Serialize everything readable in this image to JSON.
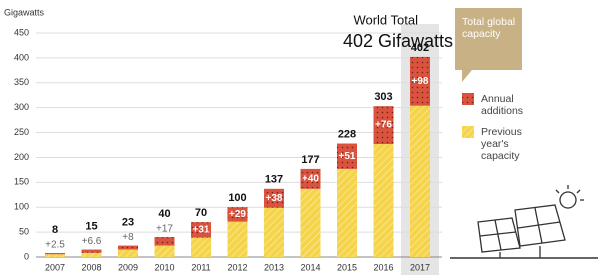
{
  "chart_data": {
    "type": "stacked_bar",
    "y_axis_label": "Gigawatts",
    "categories": [
      "2007",
      "2008",
      "2009",
      "2010",
      "2011",
      "2012",
      "2013",
      "2014",
      "2015",
      "2016",
      "2017"
    ],
    "series": [
      {
        "name": "Previous year's capacity",
        "color": "#f5d44a",
        "values": [
          5.5,
          8.4,
          15,
          23,
          39,
          71,
          99,
          137,
          177,
          227,
          304
        ]
      },
      {
        "name": "Annual additions",
        "color": "#d9533e",
        "values": [
          2.5,
          6.6,
          8,
          17,
          31,
          29,
          38,
          40,
          51,
          76,
          98
        ],
        "value_labels": [
          "+2.5",
          "+6.6",
          "+8",
          "+17",
          "+31",
          "+29",
          "+38",
          "+40",
          "+51",
          "+76",
          "+98"
        ]
      }
    ],
    "totals": [
      8,
      15,
      23,
      40,
      70,
      100,
      137,
      177,
      228,
      303,
      402
    ],
    "highlight_label": "Total global capacity",
    "annotation_title": "World Total",
    "annotation_value": "402 Gifawatts",
    "ylim": [
      0,
      450
    ],
    "yticks": [
      0,
      50,
      100,
      150,
      200,
      250,
      300,
      350,
      400,
      450
    ],
    "grid": true
  }
}
